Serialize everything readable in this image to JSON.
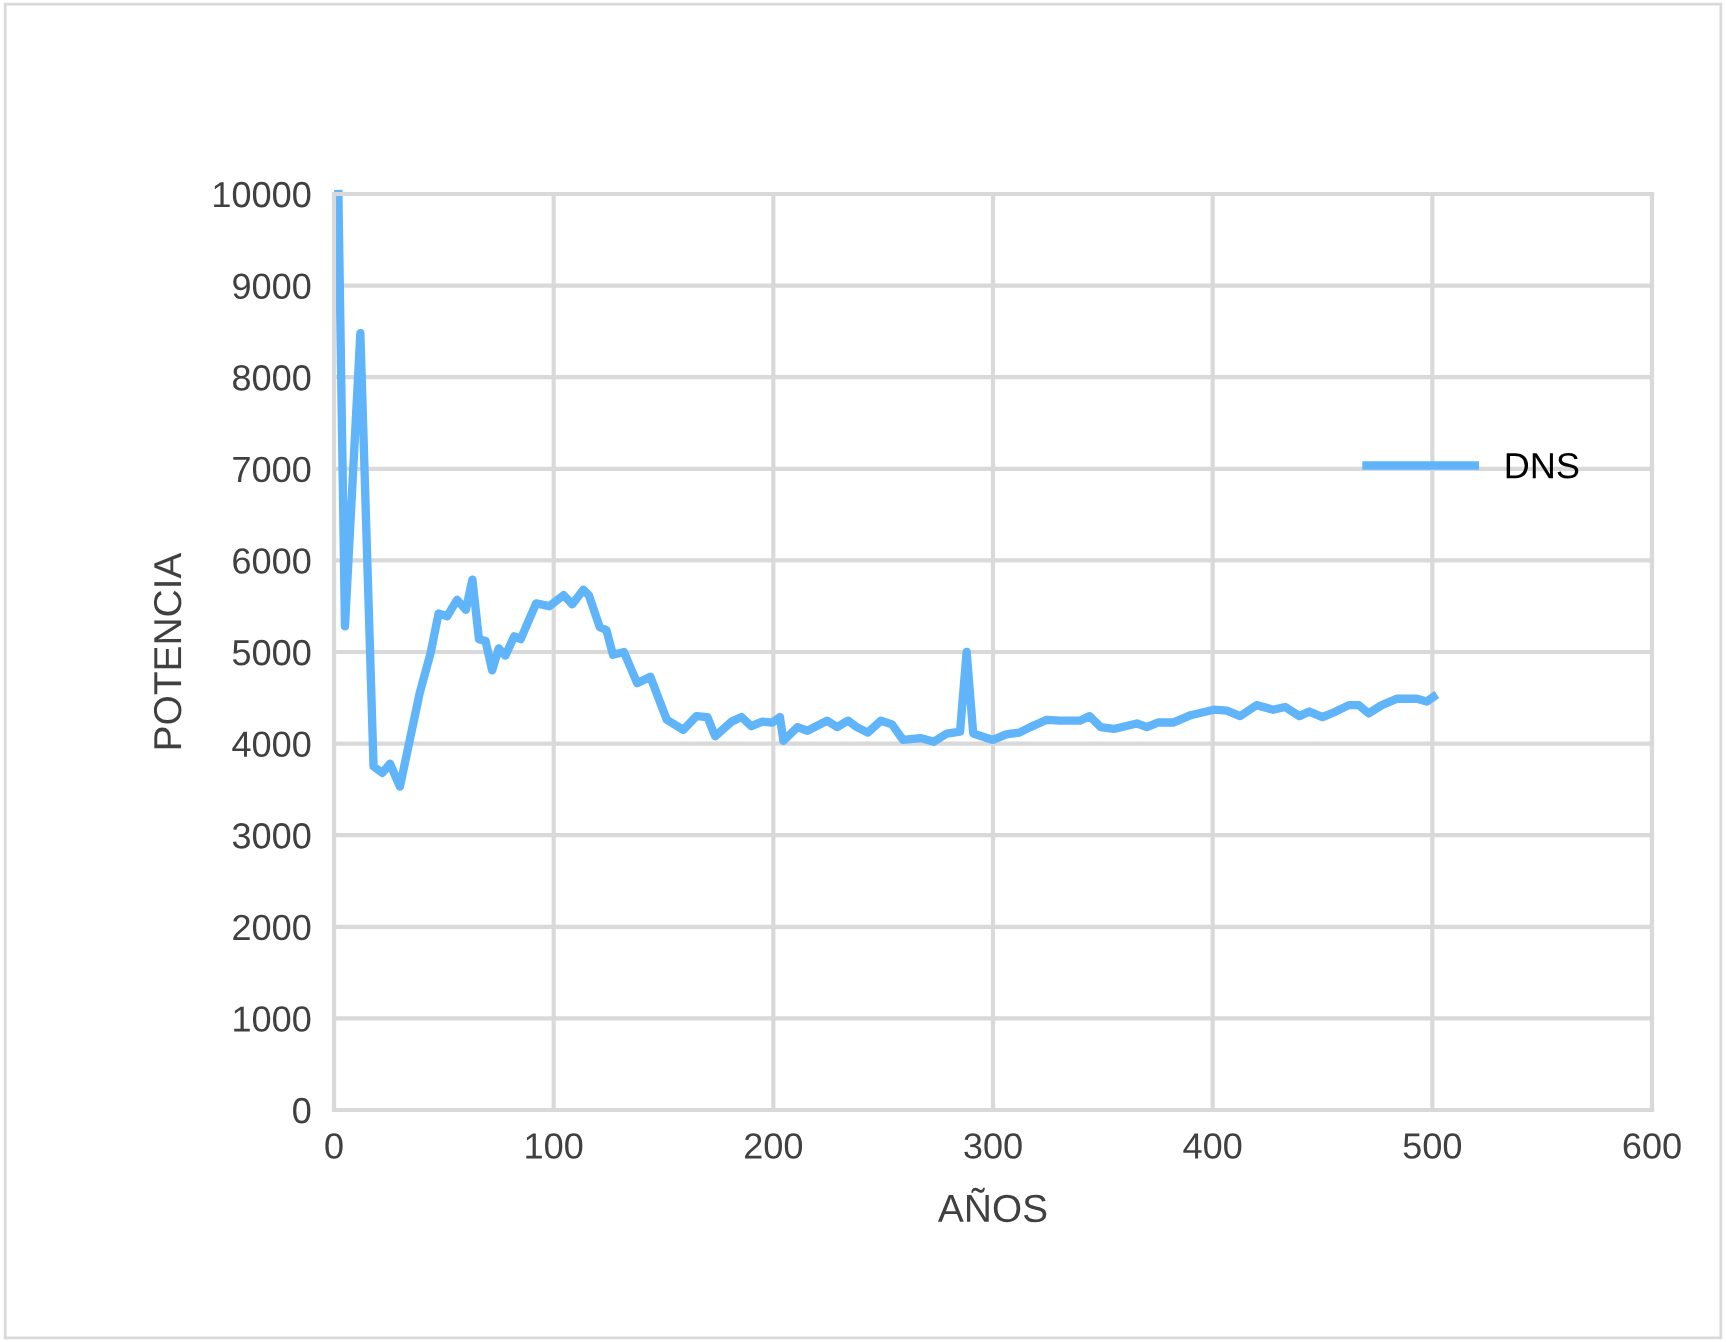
{
  "chart_data": {
    "type": "line",
    "xlabel": "AÑOS",
    "ylabel": "POTENCIA",
    "xlim": [
      0,
      600
    ],
    "xticks": [
      0,
      100,
      200,
      300,
      400,
      500,
      600
    ],
    "ylim": [
      0,
      10000
    ],
    "yticks": [
      0,
      1000,
      2000,
      3000,
      4000,
      5000,
      6000,
      7000,
      8000,
      9000,
      10000
    ],
    "grid": true,
    "legend": "right",
    "marker": "none",
    "line_style": "solid",
    "series": [
      {
        "name": "DNS",
        "color": "#5fb4fa",
        "x": [
          2,
          5,
          12,
          18,
          22,
          25.5,
          30,
          39,
          44,
          47.6,
          51.5,
          56,
          60,
          63,
          66,
          69,
          72,
          75,
          78,
          82,
          85,
          92,
          98,
          104.5,
          108.5,
          113.5,
          116,
          121,
          124,
          127,
          132,
          138,
          144,
          151.5,
          159,
          165,
          170,
          173.5,
          181,
          185.5,
          190,
          195,
          199.5,
          203,
          204.6,
          211,
          215.5,
          224.5,
          229,
          234,
          238,
          243,
          249,
          254,
          259,
          267,
          273,
          279,
          285,
          288,
          291,
          300,
          306,
          312,
          317,
          324.5,
          330.5,
          339.5,
          344,
          349,
          355,
          365.5,
          370,
          375,
          382,
          390,
          400.5,
          406.5,
          412.5,
          420,
          427.5,
          433,
          439.5,
          444,
          450,
          456,
          462,
          466.5,
          471,
          477,
          484,
          493,
          497.5,
          500.5
        ],
        "values": [
          10000,
          5280,
          8480,
          3750,
          3680,
          3780,
          3530,
          4550,
          4990,
          5420,
          5390,
          5570,
          5460,
          5790,
          5140,
          5120,
          4800,
          5040,
          4960,
          5170,
          5140,
          5530,
          5500,
          5620,
          5520,
          5680,
          5620,
          5270,
          5240,
          4970,
          5000,
          4660,
          4730,
          4260,
          4150,
          4300,
          4290,
          4080,
          4240,
          4290,
          4190,
          4240,
          4230,
          4290,
          4030,
          4180,
          4140,
          4250,
          4180,
          4250,
          4180,
          4120,
          4250,
          4210,
          4040,
          4060,
          4020,
          4110,
          4130,
          5000,
          4110,
          4040,
          4100,
          4120,
          4180,
          4260,
          4250,
          4250,
          4300,
          4180,
          4160,
          4220,
          4180,
          4230,
          4230,
          4310,
          4370,
          4360,
          4300,
          4420,
          4370,
          4400,
          4300,
          4350,
          4290,
          4350,
          4420,
          4420,
          4330,
          4420,
          4490,
          4490,
          4460,
          4510
        ]
      }
    ]
  }
}
